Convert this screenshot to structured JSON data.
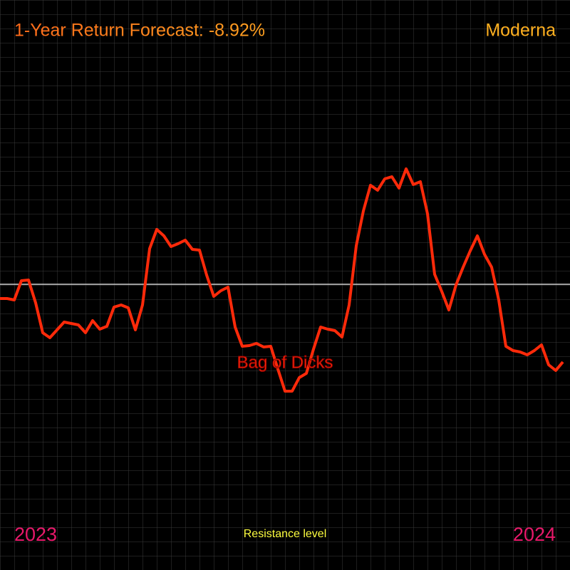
{
  "chart_data": {
    "type": "line",
    "title": "1-Year Return Forecast: -8.92%",
    "brand": "Moderna",
    "annotation": "Bag of Dicks",
    "start_label": "2023",
    "end_label": "2024",
    "reference_line": {
      "label": "Resistance level",
      "value": 401
    },
    "ylim": [
      0,
      800
    ],
    "grid": true,
    "color": "#ff2a0a",
    "values": [
      381,
      381,
      379,
      406,
      407,
      375,
      333,
      326,
      337,
      348,
      346,
      344,
      333,
      350,
      338,
      342,
      369,
      372,
      368,
      337,
      372,
      451,
      478,
      469,
      454,
      458,
      463,
      450,
      449,
      414,
      384,
      392,
      397,
      341,
      314,
      315,
      318,
      313,
      314,
      282,
      251,
      251,
      270,
      276,
      310,
      341,
      338,
      336,
      327,
      372,
      455,
      504,
      540,
      533,
      549,
      552,
      536,
      563,
      541,
      545,
      500,
      415,
      391,
      365,
      400,
      425,
      448,
      469,
      443,
      425,
      379,
      314,
      308,
      306,
      302,
      308,
      316,
      288,
      280,
      292
    ]
  }
}
